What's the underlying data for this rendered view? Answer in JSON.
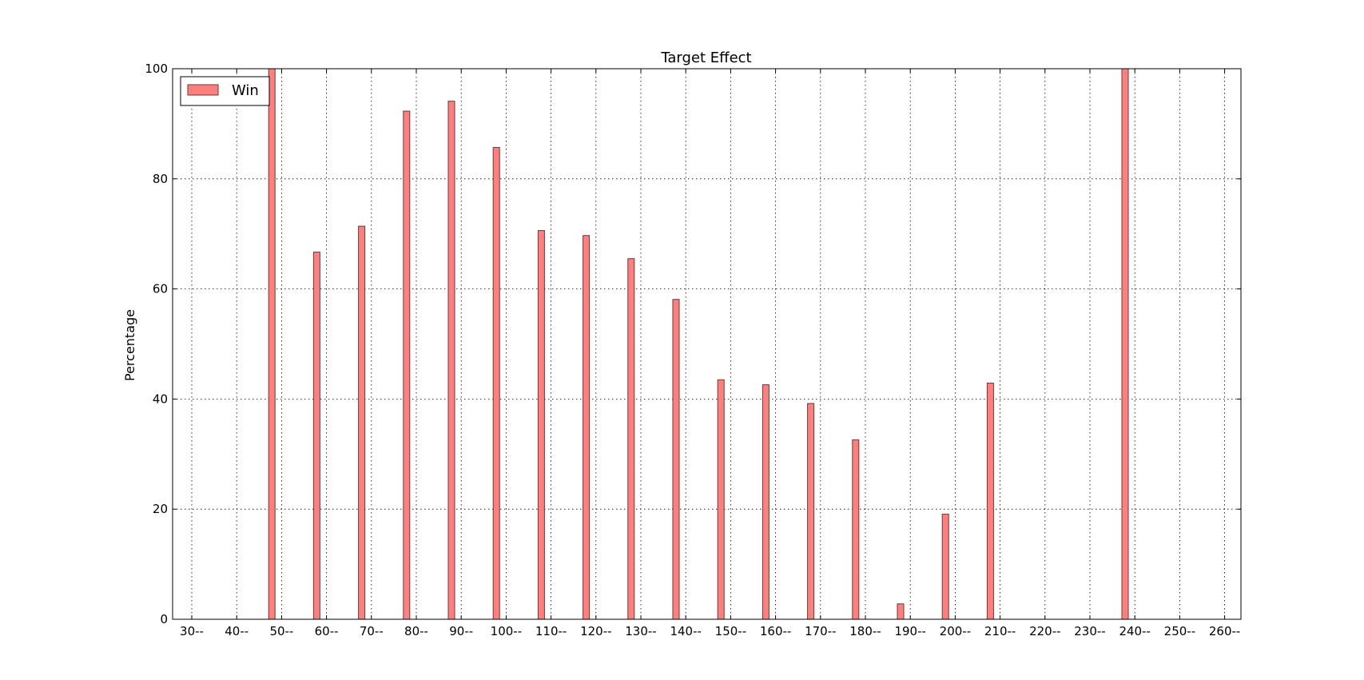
{
  "chart_data": {
    "type": "bar",
    "title": "Target Effect",
    "xlabel": "",
    "ylabel": "Percentage",
    "categories": [
      "30--",
      "40--",
      "50--",
      "60--",
      "70--",
      "80--",
      "90--",
      "100--",
      "110--",
      "120--",
      "130--",
      "140--",
      "150--",
      "160--",
      "170--",
      "180--",
      "190--",
      "200--",
      "210--",
      "220--",
      "230--",
      "240--",
      "250--",
      "260--"
    ],
    "series": [
      {
        "name": "Win",
        "color": "#ff7f7f",
        "values": [
          0,
          100,
          66.7,
          71.4,
          92.3,
          94.1,
          85.7,
          70.6,
          69.7,
          65.5,
          58.1,
          43.5,
          42.6,
          39.2,
          32.6,
          2.8,
          19.1,
          42.9,
          0,
          0,
          100,
          0,
          0,
          0
        ]
      }
    ],
    "ylim": [
      0,
      100
    ],
    "yticks": [
      0,
      20,
      40,
      60,
      80,
      100
    ],
    "grid": true,
    "legend_position": "top-left"
  }
}
